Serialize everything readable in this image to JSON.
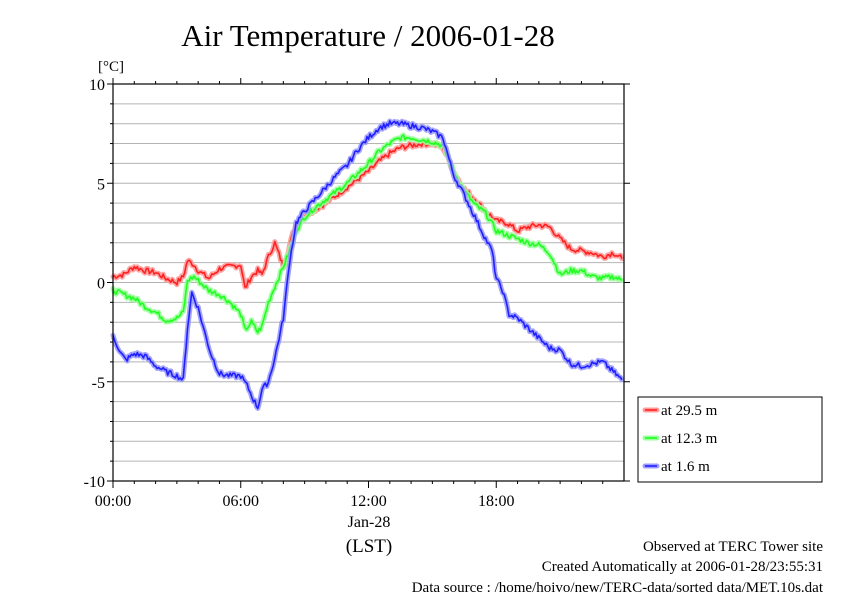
{
  "chart_data": {
    "type": "line",
    "title": "Air Temperature / 2006-01-28",
    "ylabel": "[°C]",
    "ylim": [
      -10,
      10
    ],
    "xlim": [
      0,
      24
    ],
    "x_unit": "hours (LST)",
    "yticks": [
      "10",
      "5",
      "0",
      "-5",
      "-10"
    ],
    "xticks": [
      "00:00",
      "06:00",
      "12:00",
      "18:00"
    ],
    "x_date_label": "Jan-28",
    "x_zone_label": "(LST)",
    "grid": true,
    "legend_position": "bottom-right outside",
    "series": [
      {
        "name": "at 29.5 m",
        "color": "#ff2020",
        "x": [
          0,
          0.5,
          1,
          1.5,
          2,
          2.5,
          3,
          3.3,
          3.5,
          3.8,
          4,
          4.5,
          5,
          5.5,
          6,
          6.2,
          6.5,
          6.8,
          7,
          7.3,
          7.6,
          8,
          8.3,
          8.6,
          9,
          9.5,
          10,
          10.5,
          11,
          11.5,
          12,
          12.5,
          13,
          13.5,
          14,
          14.5,
          15,
          15.5,
          16,
          16.5,
          17,
          17.5,
          18,
          18.5,
          19,
          19.5,
          20,
          20.5,
          21,
          21.5,
          22,
          22.5,
          23,
          23.5,
          23.9
        ],
        "values": [
          0.3,
          0.4,
          0.8,
          0.6,
          0.5,
          0.2,
          0.0,
          0.3,
          1.1,
          0.9,
          0.6,
          0.2,
          0.7,
          0.8,
          0.9,
          -0.3,
          0.3,
          0.6,
          0.4,
          1.3,
          2.0,
          0.8,
          1.9,
          3.0,
          3.4,
          3.7,
          4.0,
          4.4,
          4.8,
          5.2,
          5.6,
          6.1,
          6.5,
          6.8,
          6.9,
          7.0,
          7.0,
          6.8,
          5.6,
          4.7,
          4.2,
          3.6,
          3.1,
          3.0,
          2.6,
          2.8,
          2.9,
          2.8,
          2.2,
          1.7,
          1.6,
          1.5,
          1.3,
          1.5,
          1.2
        ]
      },
      {
        "name": "at 12.3 m",
        "color": "#20ff20",
        "x": [
          0,
          0.5,
          1,
          1.5,
          2,
          2.5,
          3,
          3.3,
          3.5,
          3.8,
          4,
          4.5,
          5,
          5.5,
          6,
          6.2,
          6.5,
          6.8,
          7,
          7.3,
          7.6,
          8,
          8.3,
          8.6,
          9,
          9.5,
          10,
          10.5,
          11,
          11.5,
          12,
          12.5,
          13,
          13.5,
          14,
          14.5,
          15,
          15.5,
          16,
          16.5,
          17,
          17.5,
          18,
          18.5,
          19,
          19.5,
          20,
          20.5,
          21,
          21.5,
          22,
          22.5,
          23,
          23.5,
          23.9
        ],
        "values": [
          -0.4,
          -0.6,
          -0.8,
          -1.2,
          -1.5,
          -1.9,
          -1.8,
          -1.5,
          0.1,
          0.3,
          0.1,
          -0.4,
          -0.6,
          -1.0,
          -1.6,
          -2.4,
          -2.0,
          -2.5,
          -2.2,
          -1.0,
          -0.2,
          0.8,
          1.6,
          2.6,
          3.3,
          3.8,
          4.2,
          4.6,
          5.0,
          5.5,
          6.0,
          6.6,
          7.0,
          7.3,
          7.3,
          7.2,
          7.1,
          6.9,
          5.6,
          4.6,
          3.9,
          3.5,
          2.6,
          2.4,
          2.2,
          2.0,
          1.9,
          1.5,
          0.4,
          0.6,
          0.6,
          0.3,
          0.2,
          0.3,
          0.1
        ]
      },
      {
        "name": "at 1.6 m",
        "color": "#2020ff",
        "x": [
          0,
          0.3,
          0.6,
          1,
          1.5,
          2,
          2.5,
          3,
          3.3,
          3.5,
          3.7,
          4,
          4.3,
          4.6,
          5,
          5.5,
          6,
          6.3,
          6.6,
          6.8,
          7,
          7.3,
          7.6,
          8,
          8.3,
          8.6,
          9,
          9.5,
          10,
          10.5,
          11,
          11.5,
          12,
          12.5,
          13,
          13.5,
          14,
          14.5,
          15,
          15.5,
          16,
          16.5,
          17,
          17.5,
          17.8,
          18,
          18.3,
          18.6,
          19,
          19.5,
          20,
          20.5,
          21,
          21.5,
          22,
          22.5,
          23,
          23.5,
          23.9
        ],
        "values": [
          -2.6,
          -3.5,
          -3.9,
          -3.6,
          -3.7,
          -4.2,
          -4.5,
          -4.7,
          -4.9,
          -2.3,
          -0.5,
          -1.3,
          -2.5,
          -3.6,
          -4.6,
          -4.7,
          -4.7,
          -5.2,
          -5.9,
          -6.3,
          -5.4,
          -5.0,
          -3.8,
          -1.8,
          1.1,
          3.0,
          3.6,
          4.2,
          4.8,
          5.4,
          5.9,
          6.7,
          7.3,
          7.8,
          8.0,
          8.0,
          7.9,
          7.8,
          7.6,
          7.3,
          5.4,
          4.4,
          3.3,
          2.2,
          1.6,
          0.2,
          -0.4,
          -1.6,
          -1.8,
          -2.3,
          -2.8,
          -3.3,
          -3.4,
          -4.1,
          -4.2,
          -4.1,
          -4.0,
          -4.5,
          -4.9
        ]
      }
    ]
  },
  "footer": {
    "line1": "Observed at TERC Tower site",
    "line2": "Created Automatically at 2006-01-28/23:55:31",
    "line3": "Data source : /home/hoivo/new/TERC-data/sorted  data/MET.10s.dat"
  }
}
